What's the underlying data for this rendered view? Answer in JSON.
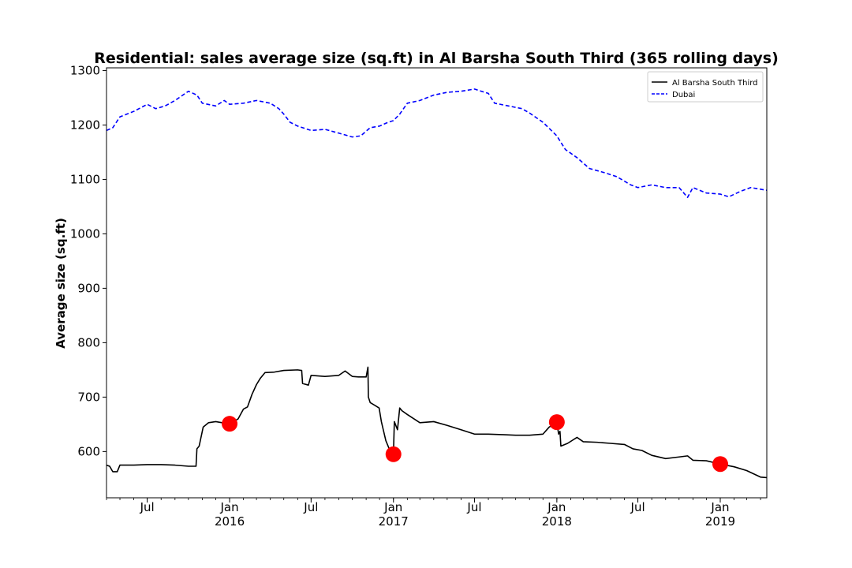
{
  "chart_data": {
    "type": "line",
    "title": "Residential: sales average size (sq.ft) in Al Barsha South Third (365 rolling days)",
    "xlabel": "",
    "ylabel": "Average size (sq.ft)",
    "xlim": [
      "2015-04-01",
      "2019-04-15"
    ],
    "ylim": [
      515,
      1305
    ],
    "yticks": [
      600,
      700,
      800,
      900,
      1000,
      1100,
      1200,
      1300
    ],
    "xticks": [
      {
        "date": "2015-07-01",
        "label": "Jul",
        "sublabel": ""
      },
      {
        "date": "2016-01-01",
        "label": "Jan",
        "sublabel": "2016"
      },
      {
        "date": "2016-07-01",
        "label": "Jul",
        "sublabel": ""
      },
      {
        "date": "2017-01-01",
        "label": "Jan",
        "sublabel": "2017"
      },
      {
        "date": "2017-07-01",
        "label": "Jul",
        "sublabel": ""
      },
      {
        "date": "2018-01-01",
        "label": "Jan",
        "sublabel": "2018"
      },
      {
        "date": "2018-07-01",
        "label": "Jul",
        "sublabel": ""
      },
      {
        "date": "2019-01-01",
        "label": "Jan",
        "sublabel": "2019"
      }
    ],
    "grid": false,
    "legend_position": "top-right",
    "series": [
      {
        "name": "Al Barsha South Third",
        "color": "#000000",
        "style": "solid",
        "points": [
          [
            "2015-04-01",
            575
          ],
          [
            "2015-04-08",
            573
          ],
          [
            "2015-04-15",
            563
          ],
          [
            "2015-04-25",
            563
          ],
          [
            "2015-05-01",
            575
          ],
          [
            "2015-06-01",
            575
          ],
          [
            "2015-07-01",
            576
          ],
          [
            "2015-08-01",
            576
          ],
          [
            "2015-09-01",
            575
          ],
          [
            "2015-10-01",
            573
          ],
          [
            "2015-10-18",
            573
          ],
          [
            "2015-10-20",
            605
          ],
          [
            "2015-10-25",
            610
          ],
          [
            "2015-11-03",
            645
          ],
          [
            "2015-11-15",
            653
          ],
          [
            "2015-12-01",
            655
          ],
          [
            "2015-12-15",
            653
          ],
          [
            "2016-01-01",
            650
          ],
          [
            "2016-01-20",
            660
          ],
          [
            "2016-02-01",
            678
          ],
          [
            "2016-02-10",
            682
          ],
          [
            "2016-02-20",
            705
          ],
          [
            "2016-03-01",
            723
          ],
          [
            "2016-03-10",
            735
          ],
          [
            "2016-03-20",
            745
          ],
          [
            "2016-04-10",
            746
          ],
          [
            "2016-05-01",
            749
          ],
          [
            "2016-06-01",
            750
          ],
          [
            "2016-06-10",
            749
          ],
          [
            "2016-06-12",
            725
          ],
          [
            "2016-06-25",
            722
          ],
          [
            "2016-07-01",
            740
          ],
          [
            "2016-08-01",
            738
          ],
          [
            "2016-09-01",
            740
          ],
          [
            "2016-09-15",
            748
          ],
          [
            "2016-10-01",
            738
          ],
          [
            "2016-10-15",
            737
          ],
          [
            "2016-11-01",
            737
          ],
          [
            "2016-11-05",
            755
          ],
          [
            "2016-11-06",
            700
          ],
          [
            "2016-11-10",
            690
          ],
          [
            "2016-11-20",
            685
          ],
          [
            "2016-11-30",
            680
          ],
          [
            "2016-12-05",
            655
          ],
          [
            "2016-12-15",
            620
          ],
          [
            "2016-12-25",
            600
          ],
          [
            "2017-01-01",
            597
          ],
          [
            "2017-01-03",
            655
          ],
          [
            "2017-01-10",
            640
          ],
          [
            "2017-01-15",
            680
          ],
          [
            "2017-01-20",
            675
          ],
          [
            "2017-02-01",
            668
          ],
          [
            "2017-03-01",
            653
          ],
          [
            "2017-04-01",
            655
          ],
          [
            "2017-05-01",
            648
          ],
          [
            "2017-06-01",
            640
          ],
          [
            "2017-07-01",
            632
          ],
          [
            "2017-08-01",
            632
          ],
          [
            "2017-09-01",
            631
          ],
          [
            "2017-10-01",
            630
          ],
          [
            "2017-11-01",
            630
          ],
          [
            "2017-12-01",
            632
          ],
          [
            "2017-12-15",
            645
          ],
          [
            "2018-01-01",
            653
          ],
          [
            "2018-01-05",
            632
          ],
          [
            "2018-01-08",
            637
          ],
          [
            "2018-01-10",
            610
          ],
          [
            "2018-01-25",
            615
          ],
          [
            "2018-02-15",
            626
          ],
          [
            "2018-03-01",
            618
          ],
          [
            "2018-04-01",
            617
          ],
          [
            "2018-05-01",
            615
          ],
          [
            "2018-06-01",
            613
          ],
          [
            "2018-06-20",
            605
          ],
          [
            "2018-07-10",
            602
          ],
          [
            "2018-08-01",
            593
          ],
          [
            "2018-09-01",
            587
          ],
          [
            "2018-10-01",
            590
          ],
          [
            "2018-10-20",
            592
          ],
          [
            "2018-11-01",
            584
          ],
          [
            "2018-12-01",
            583
          ],
          [
            "2019-01-01",
            577
          ],
          [
            "2019-02-01",
            572
          ],
          [
            "2019-03-01",
            565
          ],
          [
            "2019-04-01",
            553
          ],
          [
            "2019-04-15",
            552
          ]
        ]
      },
      {
        "name": "Dubai",
        "color": "#0000ff",
        "style": "dashed",
        "points": [
          [
            "2015-04-01",
            1190
          ],
          [
            "2015-04-15",
            1195
          ],
          [
            "2015-05-01",
            1215
          ],
          [
            "2015-06-01",
            1225
          ],
          [
            "2015-07-01",
            1238
          ],
          [
            "2015-07-20",
            1230
          ],
          [
            "2015-08-10",
            1235
          ],
          [
            "2015-09-01",
            1245
          ],
          [
            "2015-10-01",
            1262
          ],
          [
            "2015-10-20",
            1255
          ],
          [
            "2015-11-01",
            1240
          ],
          [
            "2015-12-01",
            1235
          ],
          [
            "2015-12-20",
            1245
          ],
          [
            "2016-01-01",
            1238
          ],
          [
            "2016-02-01",
            1240
          ],
          [
            "2016-03-01",
            1245
          ],
          [
            "2016-04-01",
            1240
          ],
          [
            "2016-04-20",
            1230
          ],
          [
            "2016-05-01",
            1220
          ],
          [
            "2016-05-15",
            1205
          ],
          [
            "2016-06-01",
            1198
          ],
          [
            "2016-07-01",
            1190
          ],
          [
            "2016-08-01",
            1192
          ],
          [
            "2016-09-01",
            1185
          ],
          [
            "2016-10-01",
            1178
          ],
          [
            "2016-10-20",
            1180
          ],
          [
            "2016-11-10",
            1195
          ],
          [
            "2016-12-01",
            1198
          ],
          [
            "2016-12-20",
            1205
          ],
          [
            "2017-01-01",
            1208
          ],
          [
            "2017-01-15",
            1220
          ],
          [
            "2017-02-01",
            1240
          ],
          [
            "2017-03-01",
            1245
          ],
          [
            "2017-04-01",
            1255
          ],
          [
            "2017-05-01",
            1260
          ],
          [
            "2017-06-01",
            1262
          ],
          [
            "2017-07-01",
            1266
          ],
          [
            "2017-08-01",
            1258
          ],
          [
            "2017-08-15",
            1240
          ],
          [
            "2017-09-15",
            1235
          ],
          [
            "2017-10-15",
            1230
          ],
          [
            "2017-11-01",
            1222
          ],
          [
            "2017-12-01",
            1205
          ],
          [
            "2018-01-01",
            1180
          ],
          [
            "2018-01-20",
            1155
          ],
          [
            "2018-02-15",
            1140
          ],
          [
            "2018-03-15",
            1120
          ],
          [
            "2018-04-15",
            1113
          ],
          [
            "2018-05-15",
            1105
          ],
          [
            "2018-06-15",
            1090
          ],
          [
            "2018-07-01",
            1085
          ],
          [
            "2018-08-01",
            1090
          ],
          [
            "2018-09-01",
            1085
          ],
          [
            "2018-10-01",
            1085
          ],
          [
            "2018-10-20",
            1067
          ],
          [
            "2018-11-01",
            1085
          ],
          [
            "2018-12-01",
            1075
          ],
          [
            "2019-01-01",
            1073
          ],
          [
            "2019-01-20",
            1068
          ],
          [
            "2019-02-15",
            1078
          ],
          [
            "2019-03-10",
            1085
          ],
          [
            "2019-04-15",
            1080
          ]
        ]
      }
    ],
    "highlight_points": {
      "color": "#ff0000",
      "points": [
        [
          "2016-01-01",
          651
        ],
        [
          "2017-01-01",
          595
        ],
        [
          "2018-01-01",
          654
        ],
        [
          "2019-01-01",
          577
        ]
      ]
    }
  }
}
